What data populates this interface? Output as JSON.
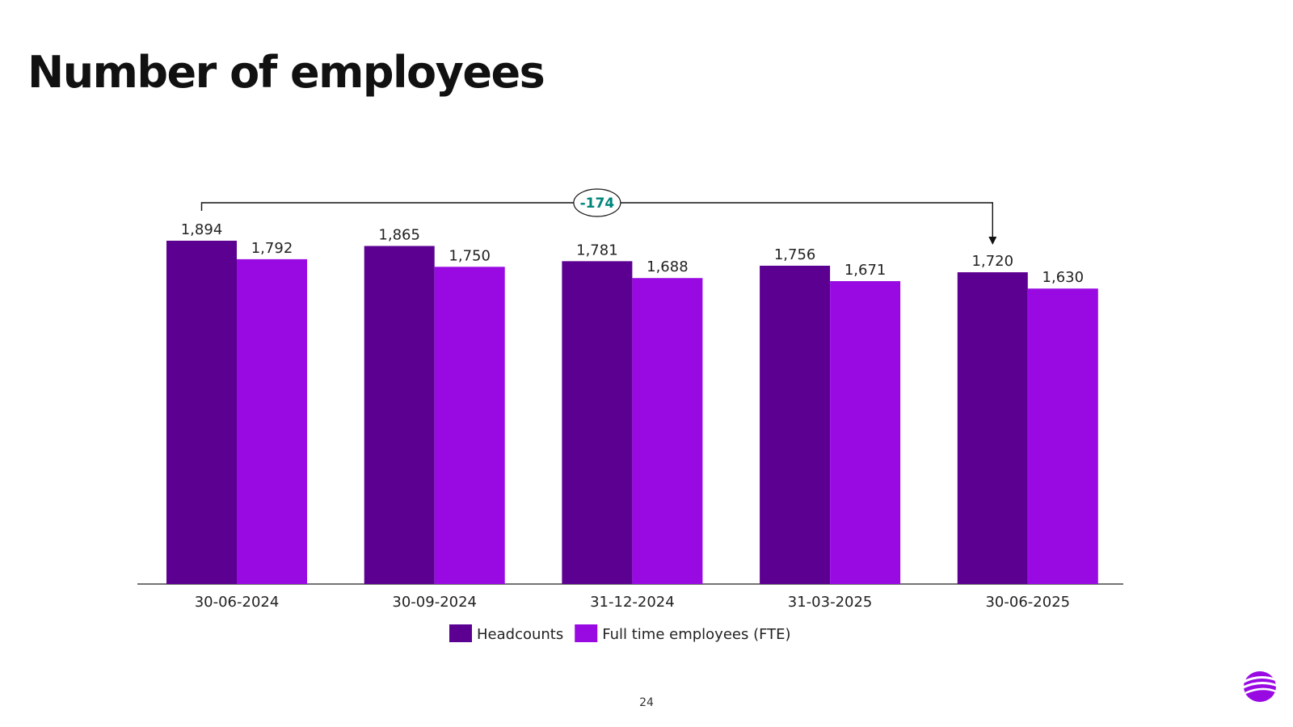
{
  "page": {
    "title": "Number of employees",
    "page_number": "24"
  },
  "chart_data": {
    "type": "bar",
    "categories": [
      "30-06-2024",
      "30-09-2024",
      "31-12-2024",
      "31-03-2025",
      "30-06-2025"
    ],
    "series": [
      {
        "name": "Headcounts",
        "values": [
          1894,
          1865,
          1781,
          1756,
          1720
        ],
        "labels": [
          "1,894",
          "1,865",
          "1,781",
          "1,756",
          "1,720"
        ],
        "color": "#5c0092"
      },
      {
        "name": "Full time employees (FTE)",
        "values": [
          1792,
          1750,
          1688,
          1671,
          1630
        ],
        "labels": [
          "1,792",
          "1,750",
          "1,688",
          "1,671",
          "1,630"
        ],
        "color": "#990ae3"
      }
    ],
    "annotation": {
      "text": "-174",
      "from_category": "30-06-2024",
      "to_category": "30-06-2025",
      "color": "#00857a"
    },
    "legend_position": "bottom",
    "grid": false,
    "title": "",
    "xlabel": "",
    "ylabel": ""
  }
}
